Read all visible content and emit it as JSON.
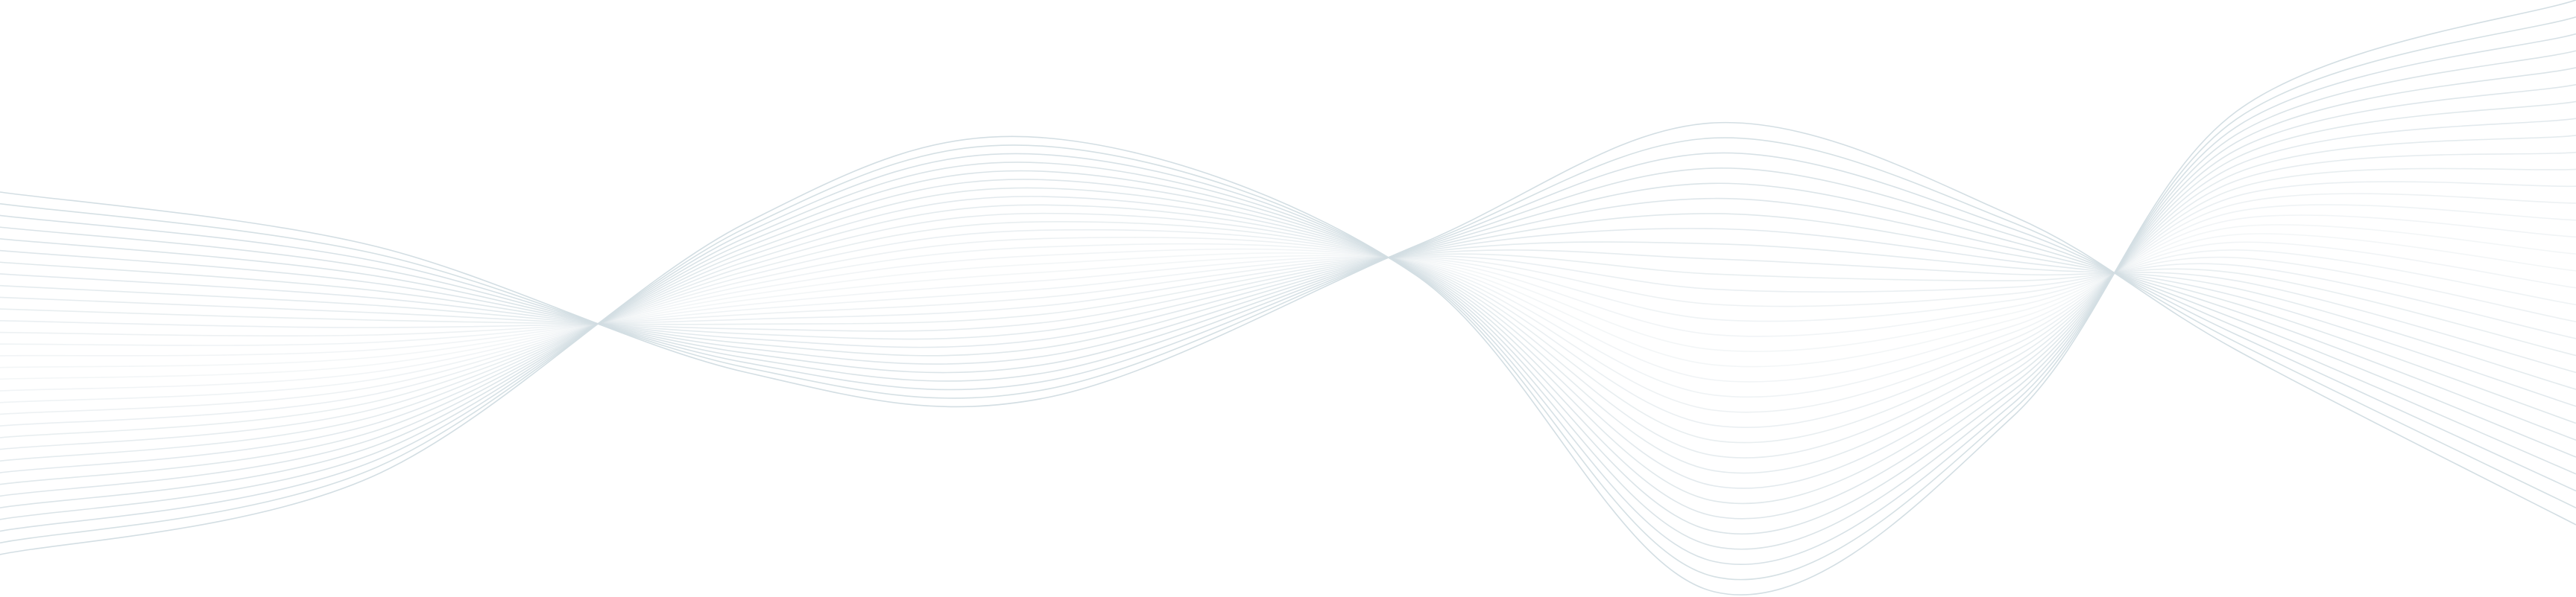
{
  "background": {
    "type": "decorative-wave-lines",
    "background_color": "#ffffff",
    "line_color": "#d3dee3",
    "line_count": 32
  }
}
